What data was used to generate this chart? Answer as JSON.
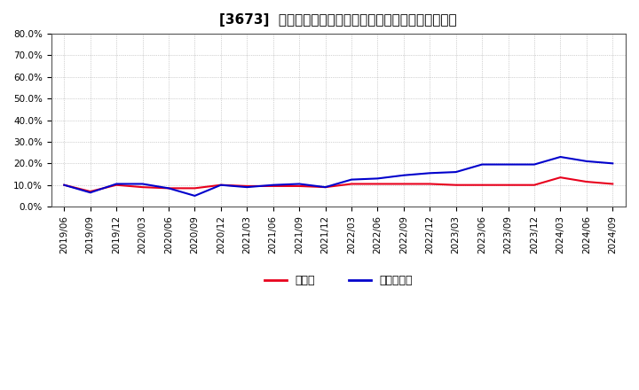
{
  "title": "[3673]  現預金、有利子負債の総資産に対する比率の推移",
  "x_labels": [
    "2019/06",
    "2019/09",
    "2019/12",
    "2020/03",
    "2020/06",
    "2020/09",
    "2020/12",
    "2021/03",
    "2021/06",
    "2021/09",
    "2021/12",
    "2022/03",
    "2022/06",
    "2022/09",
    "2022/12",
    "2023/03",
    "2023/06",
    "2023/09",
    "2023/12",
    "2024/03",
    "2024/06",
    "2024/09"
  ],
  "cash": [
    10.0,
    7.0,
    10.0,
    9.0,
    8.5,
    8.5,
    10.0,
    9.5,
    9.5,
    9.5,
    9.0,
    10.5,
    10.5,
    10.5,
    10.5,
    10.0,
    10.0,
    10.0,
    10.0,
    13.5,
    11.5,
    10.5
  ],
  "interest_bearing_debt": [
    10.0,
    6.5,
    10.5,
    10.5,
    8.5,
    5.0,
    10.0,
    9.0,
    10.0,
    10.5,
    9.0,
    12.5,
    13.0,
    14.5,
    15.5,
    16.0,
    19.5,
    19.5,
    19.5,
    23.0,
    21.0,
    20.0
  ],
  "cash_color": "#e8001c",
  "debt_color": "#0000cc",
  "ylim": [
    0,
    80
  ],
  "yticks": [
    0,
    10,
    20,
    30,
    40,
    50,
    60,
    70,
    80
  ],
  "bg_color": "#ffffff",
  "plot_bg_color": "#ffffff",
  "grid_color": "#aaaaaa",
  "legend_cash": "現預金",
  "legend_debt": "有利子負債",
  "title_fontsize": 11,
  "axis_fontsize": 7.5,
  "legend_fontsize": 9
}
